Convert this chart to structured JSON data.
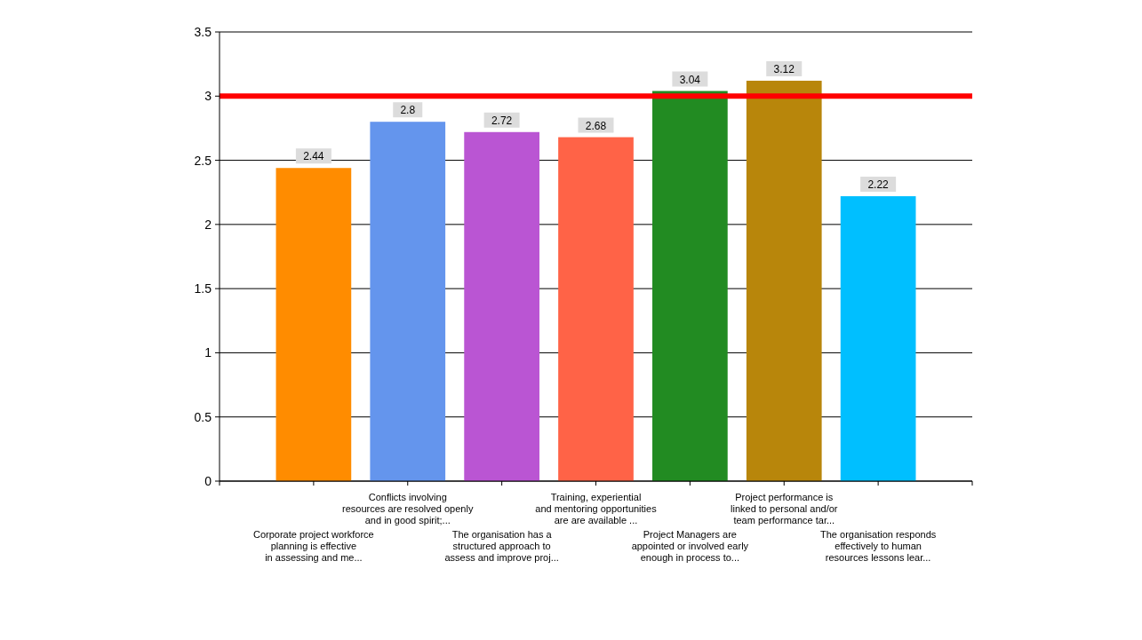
{
  "chart_data": {
    "type": "bar",
    "categories": [
      "Corporate project workforce\nplanning is effective\nin assessing and me...",
      "Conflicts involving\nresources are resolved openly\nand in good spirit;...",
      "The organisation has a\nstructured approach to\nassess and improve proj...",
      "Training, experiential\nand mentoring opportunities\nare are available ...",
      "Project Managers are\nappointed or involved early\nenough in process to...",
      "Project performance is\nlinked to personal and/or\nteam performance tar...",
      "The organisation responds\neffectively to human\nresources lessons lear..."
    ],
    "values": [
      2.44,
      2.8,
      2.72,
      2.68,
      3.04,
      3.12,
      2.22
    ],
    "colors": [
      "#ff8c00",
      "#6495ed",
      "#ba55d3",
      "#ff6347",
      "#228b22",
      "#b8860b",
      "#00bfff"
    ],
    "ylim": [
      0,
      3.5
    ],
    "yticks": [
      0,
      0.5,
      1,
      1.5,
      2,
      2.5,
      3,
      3.5
    ],
    "grid": "y",
    "data_labels": true,
    "ref_lines": [
      {
        "axis": "y",
        "value": 3,
        "color": "#ff0000"
      }
    ]
  }
}
